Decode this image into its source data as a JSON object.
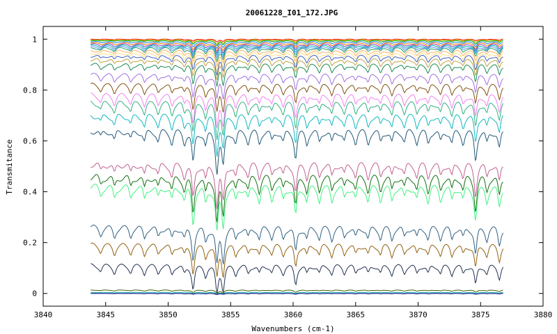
{
  "chart_data": {
    "type": "line",
    "title": "20061228_I01_172.JPG",
    "xlabel": "Wavenumbers (cm-1)",
    "ylabel": "Transmitance",
    "xlim": [
      3840,
      3880
    ],
    "ylim": [
      -0.05,
      1.05
    ],
    "x_ticks": [
      3840,
      3845,
      3850,
      3855,
      3860,
      3865,
      3870,
      3875,
      3880
    ],
    "y_ticks": [
      0,
      0.2,
      0.4,
      0.6,
      0.8,
      1
    ],
    "x_tick_labels": [
      "3840",
      "3845",
      "3850",
      "3855",
      "3860",
      "3865",
      "3870",
      "3875",
      "3880"
    ],
    "y_tick_labels": [
      "0",
      "0.2",
      "0.4",
      "0.6",
      "0.8",
      "1"
    ],
    "x_range": [
      3843.8,
      3876.8
    ],
    "absorption_lines": [
      {
        "x": 3844.6,
        "depth": 0.35
      },
      {
        "x": 3845.7,
        "depth": 0.5
      },
      {
        "x": 3847.0,
        "depth": 0.45
      },
      {
        "x": 3848.1,
        "depth": 0.55
      },
      {
        "x": 3849.2,
        "depth": 0.5
      },
      {
        "x": 3850.3,
        "depth": 0.6
      },
      {
        "x": 3851.3,
        "depth": 0.55
      },
      {
        "x": 3852.0,
        "depth": 1.6
      },
      {
        "x": 3853.0,
        "depth": 0.7
      },
      {
        "x": 3853.9,
        "depth": 1.9
      },
      {
        "x": 3854.4,
        "depth": 1.7
      },
      {
        "x": 3855.4,
        "depth": 0.6
      },
      {
        "x": 3856.4,
        "depth": 0.55
      },
      {
        "x": 3857.3,
        "depth": 0.6
      },
      {
        "x": 3858.3,
        "depth": 0.5
      },
      {
        "x": 3859.2,
        "depth": 0.55
      },
      {
        "x": 3860.2,
        "depth": 1.3
      },
      {
        "x": 3861.1,
        "depth": 0.6
      },
      {
        "x": 3862.1,
        "depth": 0.55
      },
      {
        "x": 3863.1,
        "depth": 0.6
      },
      {
        "x": 3864.1,
        "depth": 0.5
      },
      {
        "x": 3865.0,
        "depth": 0.55
      },
      {
        "x": 3866.0,
        "depth": 0.6
      },
      {
        "x": 3867.0,
        "depth": 0.55
      },
      {
        "x": 3867.9,
        "depth": 0.6
      },
      {
        "x": 3868.9,
        "depth": 0.5
      },
      {
        "x": 3869.9,
        "depth": 0.55
      },
      {
        "x": 3870.8,
        "depth": 0.6
      },
      {
        "x": 3871.8,
        "depth": 0.55
      },
      {
        "x": 3872.7,
        "depth": 0.6
      },
      {
        "x": 3873.6,
        "depth": 0.55
      },
      {
        "x": 3874.6,
        "depth": 1.4
      },
      {
        "x": 3875.5,
        "depth": 0.6
      },
      {
        "x": 3876.5,
        "depth": 0.9
      }
    ],
    "series": [
      {
        "baseline": 1.0,
        "depth": 0.005,
        "color": "#ff0000"
      },
      {
        "baseline": 0.998,
        "depth": 0.008,
        "color": "#c8b400"
      },
      {
        "baseline": 0.995,
        "depth": 0.01,
        "color": "#00a000"
      },
      {
        "baseline": 0.99,
        "depth": 0.013,
        "color": "#2080ff"
      },
      {
        "baseline": 0.985,
        "depth": 0.016,
        "color": "#ff8000"
      },
      {
        "baseline": 0.98,
        "depth": 0.018,
        "color": "#8040c0"
      },
      {
        "baseline": 0.975,
        "depth": 0.02,
        "color": "#00b0b0"
      },
      {
        "baseline": 0.97,
        "depth": 0.022,
        "color": "#6090ff"
      },
      {
        "baseline": 0.965,
        "depth": 0.025,
        "color": "#20a060"
      },
      {
        "baseline": 0.955,
        "depth": 0.028,
        "color": "#ffb060"
      },
      {
        "baseline": 0.945,
        "depth": 0.032,
        "color": "#ffe080"
      },
      {
        "baseline": 0.935,
        "depth": 0.036,
        "color": "#4060c0"
      },
      {
        "baseline": 0.92,
        "depth": 0.04,
        "color": "#c0a040"
      },
      {
        "baseline": 0.9,
        "depth": 0.045,
        "color": "#1a8a50"
      },
      {
        "baseline": 0.86,
        "depth": 0.05,
        "color": "#a070e0"
      },
      {
        "baseline": 0.82,
        "depth": 0.055,
        "color": "#805010"
      },
      {
        "baseline": 0.78,
        "depth": 0.065,
        "color": "#f080f0"
      },
      {
        "baseline": 0.75,
        "depth": 0.07,
        "color": "#30b080"
      },
      {
        "baseline": 0.7,
        "depth": 0.075,
        "color": "#10b8c0"
      },
      {
        "baseline": 0.64,
        "depth": 0.08,
        "color": "#205878"
      },
      {
        "baseline": 0.51,
        "depth": 0.085,
        "color": "#c06090"
      },
      {
        "baseline": 0.46,
        "depth": 0.09,
        "color": "#107010"
      },
      {
        "baseline": 0.42,
        "depth": 0.09,
        "color": "#40f080"
      },
      {
        "baseline": 0.26,
        "depth": 0.075,
        "color": "#306080"
      },
      {
        "baseline": 0.19,
        "depth": 0.065,
        "color": "#906010"
      },
      {
        "baseline": 0.11,
        "depth": 0.055,
        "color": "#203050"
      },
      {
        "baseline": 0.013,
        "depth": 0.006,
        "color": "#406000"
      },
      {
        "baseline": 0.004,
        "depth": 0.003,
        "color": "#00a0a0"
      },
      {
        "baseline": 0.0,
        "depth": 0.002,
        "color": "#000080"
      }
    ],
    "grid": false,
    "legend": "none"
  }
}
